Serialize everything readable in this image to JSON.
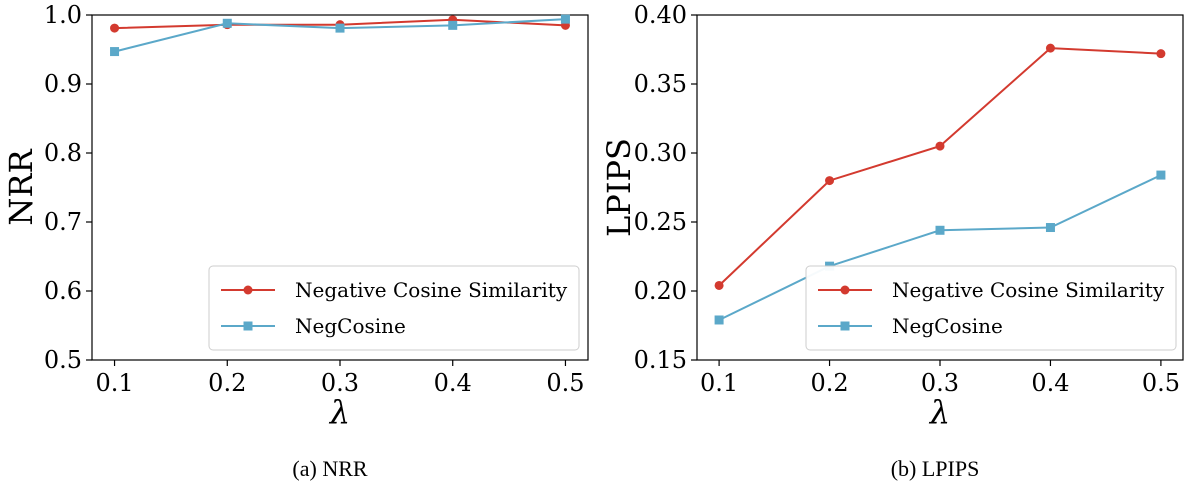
{
  "chart_data": [
    {
      "type": "line",
      "caption": "(a) NRR",
      "xlabel": "λ",
      "ylabel": "NRR",
      "x": [
        0.1,
        0.2,
        0.3,
        0.4,
        0.5
      ],
      "x_tick_labels": [
        "0.1",
        "0.2",
        "0.3",
        "0.4",
        "0.5"
      ],
      "xlim": [
        0.08,
        0.52
      ],
      "ylim": [
        0.5,
        1.0
      ],
      "y_ticks": [
        0.5,
        0.6,
        0.7,
        0.8,
        0.9,
        1.0
      ],
      "y_tick_labels": [
        "0.5",
        "0.6",
        "0.7",
        "0.8",
        "0.9",
        "1.0"
      ],
      "legend_position": "lower-right",
      "grid": false,
      "series": [
        {
          "name": "Negative Cosine Similarity",
          "color": "#d33a2f",
          "marker": "circle",
          "values": [
            0.981,
            0.986,
            0.986,
            0.993,
            0.985
          ]
        },
        {
          "name": "NegCosine",
          "color": "#5ba8c9",
          "marker": "square",
          "values": [
            0.947,
            0.988,
            0.981,
            0.985,
            0.994
          ]
        }
      ]
    },
    {
      "type": "line",
      "caption": "(b) LPIPS",
      "xlabel": "λ",
      "ylabel": "LPIPS",
      "x": [
        0.1,
        0.2,
        0.3,
        0.4,
        0.5
      ],
      "x_tick_labels": [
        "0.1",
        "0.2",
        "0.3",
        "0.4",
        "0.5"
      ],
      "xlim": [
        0.08,
        0.52
      ],
      "ylim": [
        0.15,
        0.4
      ],
      "y_ticks": [
        0.15,
        0.2,
        0.25,
        0.3,
        0.35,
        0.4
      ],
      "y_tick_labels": [
        "0.15",
        "0.20",
        "0.25",
        "0.30",
        "0.35",
        "0.40"
      ],
      "legend_position": "lower-right",
      "grid": false,
      "series": [
        {
          "name": "Negative Cosine Similarity",
          "color": "#d33a2f",
          "marker": "circle",
          "values": [
            0.204,
            0.28,
            0.305,
            0.376,
            0.372
          ]
        },
        {
          "name": "NegCosine",
          "color": "#5ba8c9",
          "marker": "square",
          "values": [
            0.179,
            0.218,
            0.244,
            0.246,
            0.284
          ]
        }
      ]
    }
  ]
}
